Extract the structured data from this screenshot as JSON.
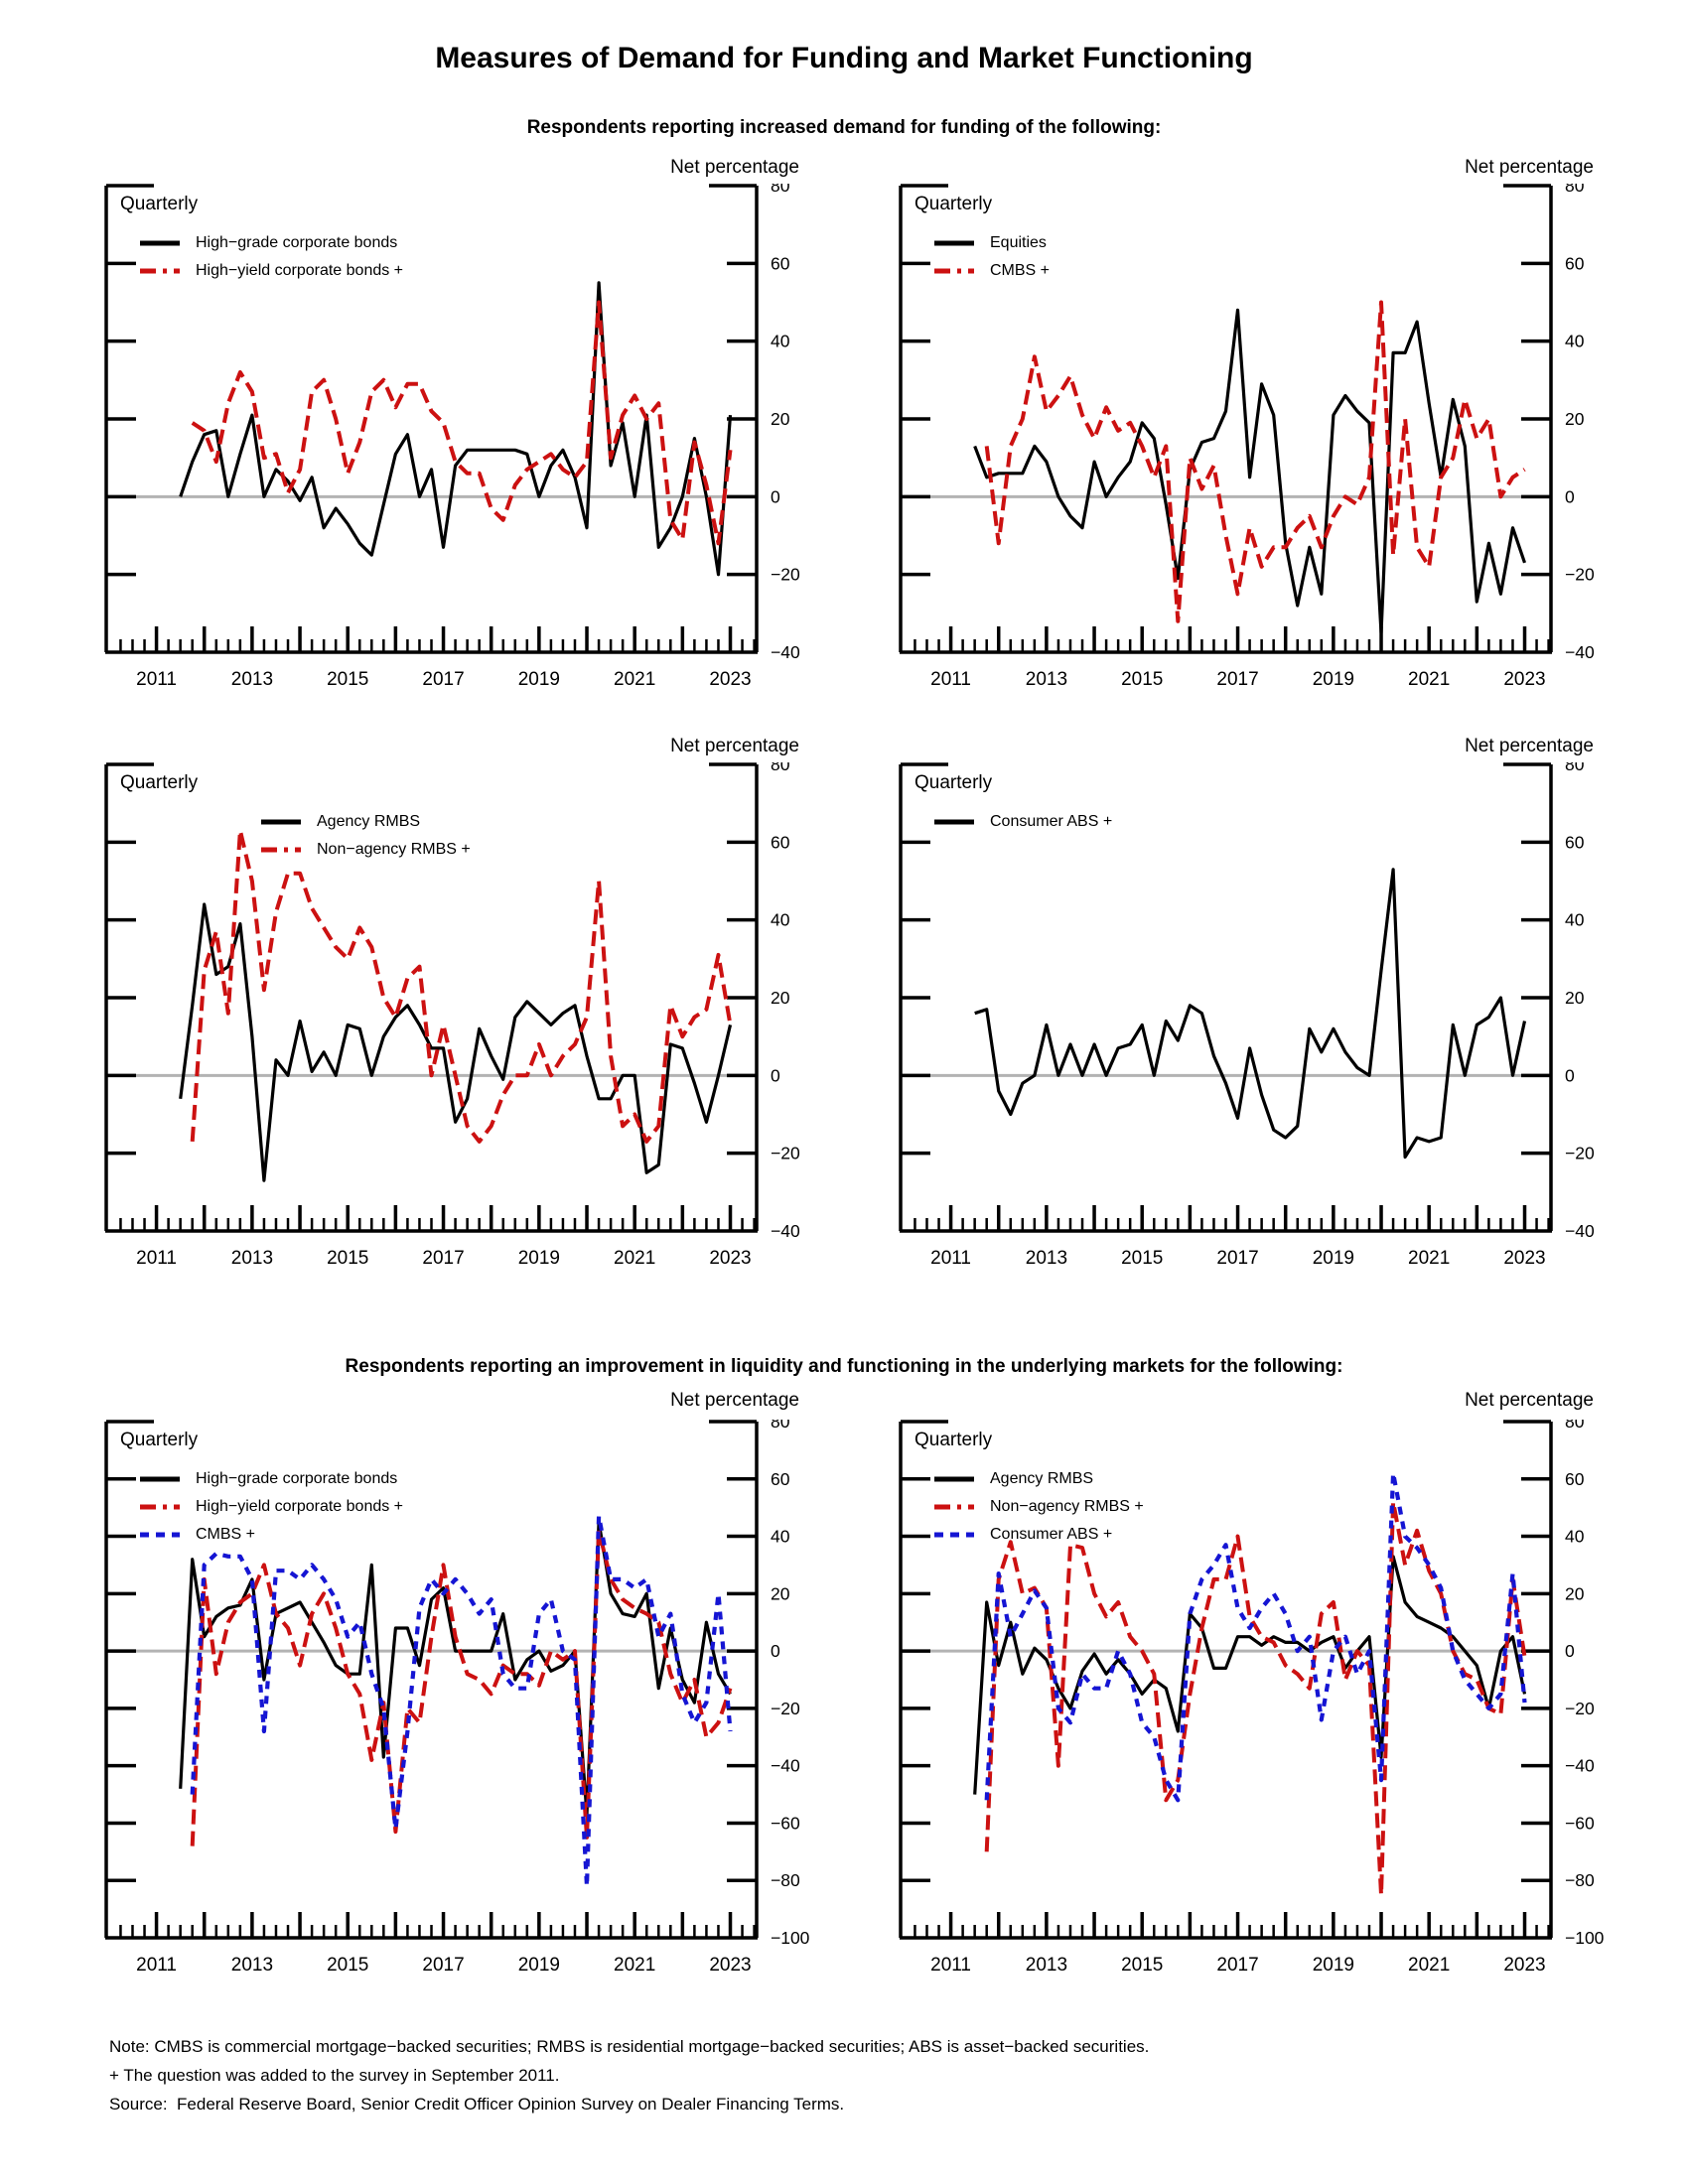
{
  "page": {
    "title": "Measures of Demand for Funding and Market Functioning",
    "section1_subtitle": "Respondents reporting increased demand for funding of the following:",
    "section2_subtitle": "Respondents reporting an improvement in liquidity and functioning in the underlying markets for the following:",
    "note_line1": "Note: CMBS is commercial mortgage−backed securities; RMBS is residential mortgage−backed securities; ABS is asset−backed securities.",
    "note_line2": "+ The question was added to the survey in September 2011.",
    "note_line3": "Source:  Federal Reserve Board, Senior Credit Officer Opinion Survey on Dealer Financing Terms."
  },
  "colors": {
    "black": "#000000",
    "red": "#cc1111",
    "blue": "#1515d3",
    "zero_line": "#b3b3b3"
  },
  "chart_data": [
    {
      "type": "line",
      "panel": "top-left",
      "freq_label": "Quarterly",
      "ylabel": "Net percentage",
      "ylim": [
        -40,
        80
      ],
      "ytick_step": 20,
      "ytick_labels": [
        "80",
        "60",
        "40",
        "20",
        "0",
        "−20",
        "−40"
      ],
      "xlim": [
        2009.95,
        2023.55
      ],
      "xtick_labels": [
        "2011",
        "2013",
        "2015",
        "2017",
        "2019",
        "2021",
        "2023"
      ],
      "grid": false,
      "legend_position": "top-left",
      "legend_indent": 0,
      "series": [
        {
          "name": "High−grade corporate bonds",
          "color": "black",
          "style": "solid",
          "start": 2011.5,
          "step": 0.25,
          "values": [
            0,
            9,
            16,
            17,
            0,
            11,
            21,
            0,
            7,
            4,
            -1,
            5,
            -8,
            -3,
            -7,
            -12,
            -15,
            -2,
            11,
            16,
            0,
            7,
            -13,
            8,
            12,
            12,
            12,
            12,
            12,
            11,
            0,
            8,
            12,
            5,
            -8,
            55,
            8,
            19,
            0,
            21,
            -13,
            -8,
            0,
            15,
            0,
            -20,
            21
          ]
        },
        {
          "name": "High−yield corporate bonds +",
          "color": "red",
          "style": "dash-long",
          "start": 2011.75,
          "step": 0.25,
          "values": [
            19,
            17,
            9,
            24,
            32,
            27,
            10,
            11,
            1,
            7,
            27,
            30,
            20,
            6,
            14,
            27,
            30,
            23,
            29,
            29,
            22,
            19,
            9,
            6,
            6,
            -3,
            -6,
            3,
            7,
            9,
            11,
            7,
            5,
            9,
            50,
            10,
            21,
            26,
            20,
            24,
            -6,
            -11,
            14,
            3,
            -12,
            12
          ]
        }
      ]
    },
    {
      "type": "line",
      "panel": "top-right",
      "freq_label": "Quarterly",
      "ylabel": "Net percentage",
      "ylim": [
        -40,
        80
      ],
      "ytick_step": 20,
      "ytick_labels": [
        "80",
        "60",
        "40",
        "20",
        "0",
        "−20",
        "−40"
      ],
      "xlim": [
        2009.95,
        2023.55
      ],
      "xtick_labels": [
        "2011",
        "2013",
        "2015",
        "2017",
        "2019",
        "2021",
        "2023"
      ],
      "grid": false,
      "legend_position": "top-left",
      "legend_indent": 0,
      "series": [
        {
          "name": "Equities",
          "color": "black",
          "style": "solid",
          "start": 2011.5,
          "step": 0.25,
          "values": [
            13,
            5,
            6,
            6,
            6,
            13,
            9,
            0,
            -5,
            -8,
            9,
            0,
            5,
            9,
            19,
            15,
            -2,
            -21,
            7,
            14,
            15,
            22,
            48,
            5,
            29,
            21,
            -12,
            -28,
            -13,
            -25,
            21,
            26,
            22,
            19,
            -35,
            37,
            37,
            45,
            24,
            5,
            25,
            13,
            -27,
            -12,
            -25,
            -8,
            -17
          ]
        },
        {
          "name": "CMBS +",
          "color": "red",
          "style": "dash-long",
          "start": 2011.75,
          "step": 0.25,
          "values": [
            13,
            -12,
            13,
            20,
            36,
            22,
            26,
            31,
            21,
            15,
            23,
            17,
            19,
            13,
            5,
            13,
            -32,
            10,
            2,
            8,
            -10,
            -25,
            -8,
            -18,
            -13,
            -13,
            -8,
            -5,
            -13,
            -5,
            0,
            -2,
            5,
            50,
            -15,
            20,
            -13,
            -18,
            5,
            10,
            25,
            15,
            20,
            0,
            5,
            7
          ]
        }
      ]
    },
    {
      "type": "line",
      "panel": "middle-left",
      "freq_label": "Quarterly",
      "ylabel": "Net percentage",
      "ylim": [
        -40,
        80
      ],
      "ytick_step": 20,
      "ytick_labels": [
        "80",
        "60",
        "40",
        "20",
        "0",
        "−20",
        "−40"
      ],
      "xlim": [
        2009.95,
        2023.55
      ],
      "xtick_labels": [
        "2011",
        "2013",
        "2015",
        "2017",
        "2019",
        "2021",
        "2023"
      ],
      "grid": false,
      "legend_position": "top-left",
      "legend_indent": 122,
      "series": [
        {
          "name": "Agency RMBS",
          "color": "black",
          "style": "solid",
          "start": 2011.5,
          "step": 0.25,
          "values": [
            -6,
            18,
            44,
            26,
            28,
            39,
            10,
            -27,
            4,
            0,
            14,
            1,
            6,
            0,
            13,
            12,
            0,
            10,
            15,
            18,
            13,
            7,
            7,
            -12,
            -6,
            12,
            5,
            -1,
            15,
            19,
            16,
            13,
            16,
            18,
            5,
            -6,
            -6,
            0,
            0,
            -25,
            -23,
            8,
            7,
            -2,
            -12,
            0,
            13
          ]
        },
        {
          "name": "Non−agency RMBS +",
          "color": "red",
          "style": "dash-long",
          "start": 2011.75,
          "step": 0.25,
          "values": [
            -17,
            27,
            37,
            16,
            63,
            50,
            22,
            42,
            52,
            52,
            43,
            38,
            33,
            30,
            38,
            33,
            20,
            15,
            25,
            28,
            0,
            13,
            0,
            -13,
            -17,
            -13,
            -5,
            0,
            0,
            8,
            0,
            5,
            8,
            15,
            50,
            5,
            -13,
            -10,
            -17,
            -13,
            18,
            10,
            15,
            17,
            31,
            13
          ]
        }
      ]
    },
    {
      "type": "line",
      "panel": "middle-right",
      "freq_label": "Quarterly",
      "ylabel": "Net percentage",
      "ylim": [
        -40,
        80
      ],
      "ytick_step": 20,
      "ytick_labels": [
        "80",
        "60",
        "40",
        "20",
        "0",
        "−20",
        "−40"
      ],
      "xlim": [
        2009.95,
        2023.55
      ],
      "xtick_labels": [
        "2011",
        "2013",
        "2015",
        "2017",
        "2019",
        "2021",
        "2023"
      ],
      "grid": false,
      "legend_position": "top-left",
      "legend_indent": 0,
      "series": [
        {
          "name": "Consumer ABS +",
          "color": "black",
          "style": "solid",
          "start": 2011.5,
          "step": 0.25,
          "values": [
            16,
            17,
            -4,
            -10,
            -2,
            0,
            13,
            0,
            8,
            0,
            8,
            0,
            7,
            8,
            13,
            0,
            14,
            9,
            18,
            16,
            5,
            -2,
            -11,
            7,
            -5,
            -14,
            -16,
            -13,
            12,
            6,
            12,
            6,
            2,
            0,
            27,
            53,
            -21,
            -16,
            -17,
            -16,
            13,
            0,
            13,
            15,
            20,
            0,
            14
          ]
        }
      ]
    },
    {
      "type": "line",
      "panel": "bottom-left",
      "freq_label": "Quarterly",
      "ylabel": "Net percentage",
      "ylim": [
        -100,
        80
      ],
      "ytick_step": 20,
      "ytick_labels": [
        "80",
        "60",
        "40",
        "20",
        "0",
        "−20",
        "−40",
        "−60",
        "−80",
        "−100"
      ],
      "xlim": [
        2009.95,
        2023.55
      ],
      "xtick_labels": [
        "2011",
        "2013",
        "2015",
        "2017",
        "2019",
        "2021",
        "2023"
      ],
      "grid": false,
      "legend_position": "top-left",
      "legend_indent": 0,
      "series": [
        {
          "name": "High−grade corporate bonds",
          "color": "black",
          "style": "solid",
          "start": 2011.5,
          "step": 0.25,
          "values": [
            -48,
            32,
            5,
            12,
            15,
            16,
            25,
            -10,
            13,
            15,
            17,
            10,
            3,
            -5,
            -8,
            -8,
            30,
            -37,
            8,
            8,
            -5,
            18,
            22,
            0,
            0,
            0,
            0,
            13,
            -10,
            -3,
            0,
            -7,
            -5,
            0,
            -57,
            45,
            20,
            13,
            12,
            20,
            -13,
            8,
            -10,
            -18,
            10,
            -8,
            -15
          ]
        },
        {
          "name": "High−yield corporate bonds +",
          "color": "red",
          "style": "dash-long",
          "start": 2011.75,
          "step": 0.25,
          "values": [
            -68,
            25,
            -8,
            10,
            17,
            20,
            30,
            13,
            8,
            -5,
            13,
            20,
            8,
            -8,
            -15,
            -38,
            -18,
            -63,
            -20,
            -25,
            5,
            30,
            5,
            -8,
            -10,
            -15,
            -5,
            -8,
            -8,
            -12,
            0,
            -3,
            0,
            -65,
            42,
            25,
            18,
            15,
            13,
            10,
            -8,
            -18,
            -10,
            -30,
            -25,
            -13
          ]
        },
        {
          "name": "CMBS +",
          "color": "blue",
          "style": "dash-short",
          "start": 2011.75,
          "step": 0.25,
          "values": [
            -50,
            30,
            34,
            33,
            33,
            25,
            -28,
            28,
            28,
            25,
            30,
            25,
            18,
            5,
            10,
            -8,
            -20,
            -62,
            -28,
            15,
            25,
            20,
            25,
            20,
            13,
            18,
            -8,
            -13,
            -13,
            13,
            18,
            0,
            -3,
            -82,
            47,
            25,
            25,
            22,
            25,
            5,
            13,
            -15,
            -25,
            -18,
            20,
            -28
          ]
        }
      ]
    },
    {
      "type": "line",
      "panel": "bottom-right",
      "freq_label": "Quarterly",
      "ylabel": "Net percentage",
      "ylim": [
        -100,
        80
      ],
      "ytick_step": 20,
      "ytick_labels": [
        "80",
        "60",
        "40",
        "20",
        "0",
        "−20",
        "−40",
        "−60",
        "−80",
        "−100"
      ],
      "xlim": [
        2009.95,
        2023.55
      ],
      "xtick_labels": [
        "2011",
        "2013",
        "2015",
        "2017",
        "2019",
        "2021",
        "2023"
      ],
      "grid": false,
      "legend_position": "top-left",
      "legend_indent": 0,
      "series": [
        {
          "name": "Agency RMBS",
          "color": "black",
          "style": "solid",
          "start": 2011.5,
          "step": 0.25,
          "values": [
            -50,
            17,
            -5,
            10,
            -8,
            1,
            -3,
            -13,
            -20,
            -7,
            -1,
            -8,
            -3,
            -8,
            -15,
            -10,
            -13,
            -28,
            13,
            8,
            -6,
            -6,
            5,
            5,
            2,
            5,
            3,
            3,
            0,
            3,
            5,
            -6,
            0,
            5,
            -37,
            33,
            17,
            12,
            10,
            8,
            5,
            0,
            -5,
            -20,
            0,
            5,
            -15
          ]
        },
        {
          "name": "Non−agency RMBS +",
          "color": "red",
          "style": "dash-long",
          "start": 2011.75,
          "step": 0.25,
          "values": [
            -70,
            25,
            38,
            20,
            22,
            15,
            -40,
            37,
            36,
            20,
            12,
            17,
            5,
            0,
            -8,
            -52,
            -45,
            -15,
            8,
            25,
            25,
            40,
            12,
            5,
            3,
            -5,
            -8,
            -13,
            13,
            17,
            -10,
            0,
            -5,
            -85,
            52,
            30,
            42,
            28,
            20,
            0,
            -8,
            -10,
            -20,
            -22,
            25,
            -2
          ]
        },
        {
          "name": "Consumer ABS +",
          "color": "blue",
          "style": "dash-short",
          "start": 2011.75,
          "step": 0.25,
          "values": [
            -52,
            27,
            5,
            13,
            21,
            15,
            -20,
            -25,
            -8,
            -13,
            -13,
            0,
            -8,
            -25,
            -30,
            -45,
            -52,
            13,
            25,
            30,
            37,
            15,
            8,
            15,
            20,
            13,
            0,
            5,
            -24,
            0,
            5,
            -8,
            0,
            -45,
            62,
            40,
            36,
            30,
            22,
            0,
            -10,
            -15,
            -20,
            -15,
            27,
            -18
          ]
        }
      ]
    }
  ]
}
